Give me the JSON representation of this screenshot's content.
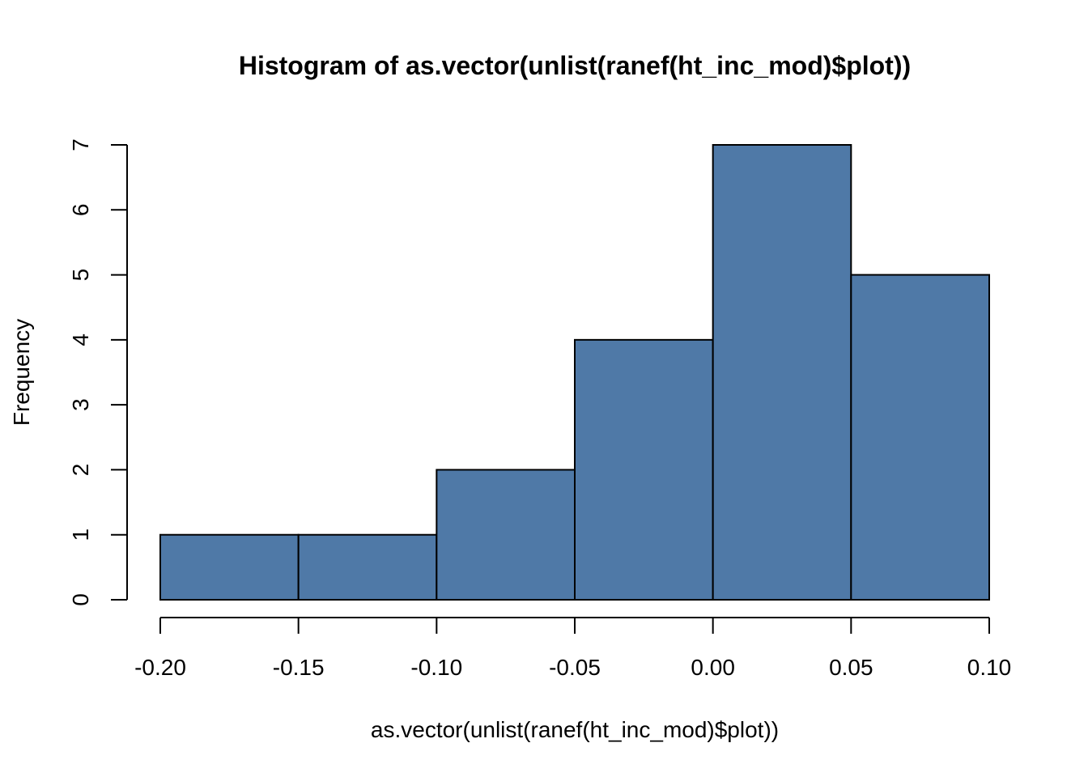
{
  "chart_data": {
    "type": "bar",
    "title": "Histogram of as.vector(unlist(ranef(ht_inc_mod)$plot))",
    "xlabel": "as.vector(unlist(ranef(ht_inc_mod)$plot))",
    "ylabel": "Frequency",
    "bins": [
      {
        "start": -0.2,
        "end": -0.15,
        "count": 1
      },
      {
        "start": -0.15,
        "end": -0.1,
        "count": 1
      },
      {
        "start": -0.1,
        "end": -0.05,
        "count": 2
      },
      {
        "start": -0.05,
        "end": 0.0,
        "count": 4
      },
      {
        "start": 0.0,
        "end": 0.05,
        "count": 7
      },
      {
        "start": 0.05,
        "end": 0.1,
        "count": 5
      }
    ],
    "xlim": [
      -0.2,
      0.1
    ],
    "ylim": [
      0,
      7
    ],
    "x_ticks": [
      -0.2,
      -0.15,
      -0.1,
      -0.05,
      0.0,
      0.05,
      0.1
    ],
    "x_tick_labels": [
      "-0.20",
      "-0.15",
      "-0.10",
      "-0.05",
      "0.00",
      "0.05",
      "0.10"
    ],
    "y_ticks": [
      0,
      1,
      2,
      3,
      4,
      5,
      6,
      7
    ],
    "y_tick_labels": [
      "0",
      "1",
      "2",
      "3",
      "4",
      "5",
      "6",
      "7"
    ],
    "bar_color": "#4f79a7",
    "grid": false
  }
}
